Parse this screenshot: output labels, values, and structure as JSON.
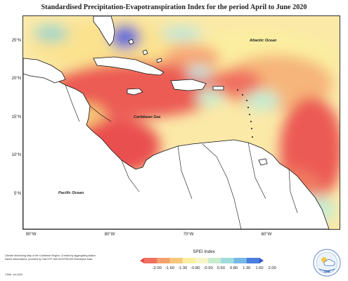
{
  "title": "Standardised Precipitation-Evapotranspiration Index for the period April to June 2020",
  "lat_labels": [
    "25°N",
    "20°N",
    "15°N",
    "10°N",
    "5°N"
  ],
  "lon_labels": [
    "90°W",
    "80°W",
    "70°W",
    "60°W"
  ],
  "place_labels": {
    "atlantic": "Atlantic Ocean",
    "caribbean": "Caribbean Sea",
    "pacific": "Pacific Ocean"
  },
  "credit": "Climate Monitoring Map of the Caribbean Region. Created by aggregating station based observations, provided by CariCOF, with NCEP/NCAR Reanalysis Data.",
  "credit_date": "CIMH: Jul-2020",
  "legend": {
    "title": "SPEI Index",
    "ticks": [
      "-2.00",
      "-1.60",
      "-1.30",
      "-0.80",
      "-0.50",
      "0.50",
      "0.80",
      "1.30",
      "1.60",
      "2.00"
    ],
    "colors": [
      "#e8494a",
      "#f07060",
      "#f5a06a",
      "#f6c97a",
      "#fbeea0",
      "#f5f5c8",
      "#c8ecd0",
      "#9fdcdc",
      "#76b8e6",
      "#4a7ee0",
      "#3a56c8"
    ]
  },
  "logo": {
    "icon": "cimh-logo",
    "label": "CIMH"
  }
}
